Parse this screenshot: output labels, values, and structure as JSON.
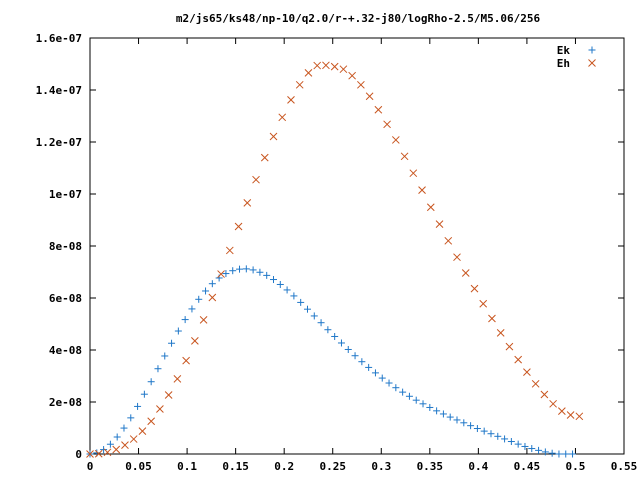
{
  "chart_data": {
    "type": "scatter",
    "title": "m2/js65/ks48/np-10/q2.0/r-+.32-j80/logRho-2.5/M5.06/256",
    "xlabel": "",
    "ylabel": "",
    "xlim": [
      0,
      0.55
    ],
    "ylim": [
      0,
      1.6e-07
    ],
    "x_ticks": [
      "0",
      "0.05",
      "0.1",
      "0.15",
      "0.2",
      "0.25",
      "0.3",
      "0.35",
      "0.4",
      "0.45",
      "0.5",
      "0.55"
    ],
    "y_ticks": [
      "0",
      "2e-08",
      "4e-08",
      "6e-08",
      "8e-08",
      "1e-07",
      "1.2e-07",
      "1.4e-07",
      "1.6e-07"
    ],
    "grid": false,
    "legend_position": "top-right",
    "series": [
      {
        "name": "Ek",
        "marker": "plus",
        "color": "#1f77c8",
        "x": [
          0.0,
          0.007,
          0.014,
          0.021,
          0.028,
          0.035,
          0.042,
          0.049,
          0.056,
          0.063,
          0.07,
          0.077,
          0.084,
          0.091,
          0.098,
          0.105,
          0.112,
          0.119,
          0.126,
          0.133,
          0.14,
          0.147,
          0.154,
          0.161,
          0.168,
          0.175,
          0.182,
          0.189,
          0.196,
          0.203,
          0.21,
          0.217,
          0.224,
          0.231,
          0.238,
          0.245,
          0.252,
          0.259,
          0.266,
          0.273,
          0.28,
          0.287,
          0.294,
          0.301,
          0.308,
          0.315,
          0.322,
          0.329,
          0.336,
          0.343,
          0.35,
          0.357,
          0.364,
          0.371,
          0.378,
          0.385,
          0.392,
          0.399,
          0.406,
          0.413,
          0.42,
          0.427,
          0.434,
          0.441,
          0.448,
          0.455,
          0.462,
          0.469,
          0.476,
          0.483,
          0.49,
          0.497
        ],
        "y": [
          0,
          4.3e-10,
          1.7e-09,
          3.76e-09,
          6.54e-09,
          9.97e-09,
          1.39e-08,
          1.83e-08,
          2.3e-08,
          2.78e-08,
          3.28e-08,
          3.77e-08,
          4.26e-08,
          4.73e-08,
          5.17e-08,
          5.58e-08,
          5.95e-08,
          6.27e-08,
          6.55e-08,
          6.77e-08,
          6.94e-08,
          7.05e-08,
          7.11e-08,
          7.12e-08,
          7.08e-08,
          6.99e-08,
          6.87e-08,
          6.71e-08,
          6.52e-08,
          6.31e-08,
          6.08e-08,
          5.83e-08,
          5.57e-08,
          5.31e-08,
          5.05e-08,
          4.78e-08,
          4.52e-08,
          4.27e-08,
          4.02e-08,
          3.78e-08,
          3.55e-08,
          3.33e-08,
          3.12e-08,
          2.92e-08,
          2.73e-08,
          2.55e-08,
          2.38e-08,
          2.22e-08,
          2.07e-08,
          1.93e-08,
          1.79e-08,
          1.66e-08,
          1.54e-08,
          1.42e-08,
          1.31e-08,
          1.2e-08,
          1.09e-08,
          9.8e-09,
          8.8e-09,
          7.8e-09,
          6.8e-09,
          5.8e-09,
          4.8e-09,
          3.8e-09,
          2.9e-09,
          2.1e-09,
          1.4e-09,
          8e-10,
          3e-10,
          0,
          0,
          0
        ]
      },
      {
        "name": "Eh",
        "marker": "cross",
        "color": "#c8551f",
        "x": [
          0.0,
          0.009,
          0.018,
          0.027,
          0.036,
          0.045,
          0.054,
          0.063,
          0.072,
          0.081,
          0.09,
          0.099,
          0.108,
          0.117,
          0.126,
          0.135,
          0.144,
          0.153,
          0.162,
          0.171,
          0.18,
          0.189,
          0.198,
          0.207,
          0.216,
          0.225,
          0.234,
          0.243,
          0.252,
          0.261,
          0.27,
          0.279,
          0.288,
          0.297,
          0.306,
          0.315,
          0.324,
          0.333,
          0.342,
          0.351,
          0.36,
          0.369,
          0.378,
          0.387,
          0.396,
          0.405,
          0.414,
          0.423,
          0.432,
          0.441,
          0.45,
          0.459,
          0.468,
          0.477,
          0.486,
          0.495,
          0.504
        ],
        "y": [
          0,
          1e-10,
          6.5e-10,
          1.74e-09,
          3.41e-09,
          5.74e-09,
          8.79e-09,
          1.26e-08,
          1.73e-08,
          2.27e-08,
          2.89e-08,
          3.59e-08,
          4.35e-08,
          5.16e-08,
          6.02e-08,
          6.92e-08,
          7.83e-08,
          8.75e-08,
          9.66e-08,
          1.055e-07,
          1.14e-07,
          1.221e-07,
          1.295e-07,
          1.362e-07,
          1.42e-07,
          1.466e-07,
          1.494e-07,
          1.495e-07,
          1.49e-07,
          1.48e-07,
          1.455e-07,
          1.42e-07,
          1.376e-07,
          1.324e-07,
          1.268e-07,
          1.208e-07,
          1.145e-07,
          1.08e-07,
          1.015e-07,
          9.49e-08,
          8.84e-08,
          8.2e-08,
          7.57e-08,
          6.96e-08,
          6.36e-08,
          5.78e-08,
          5.21e-08,
          4.66e-08,
          4.13e-08,
          3.63e-08,
          3.15e-08,
          2.7e-08,
          2.29e-08,
          1.93e-08,
          1.65e-08,
          1.5e-08,
          1.45e-08
        ]
      }
    ]
  }
}
